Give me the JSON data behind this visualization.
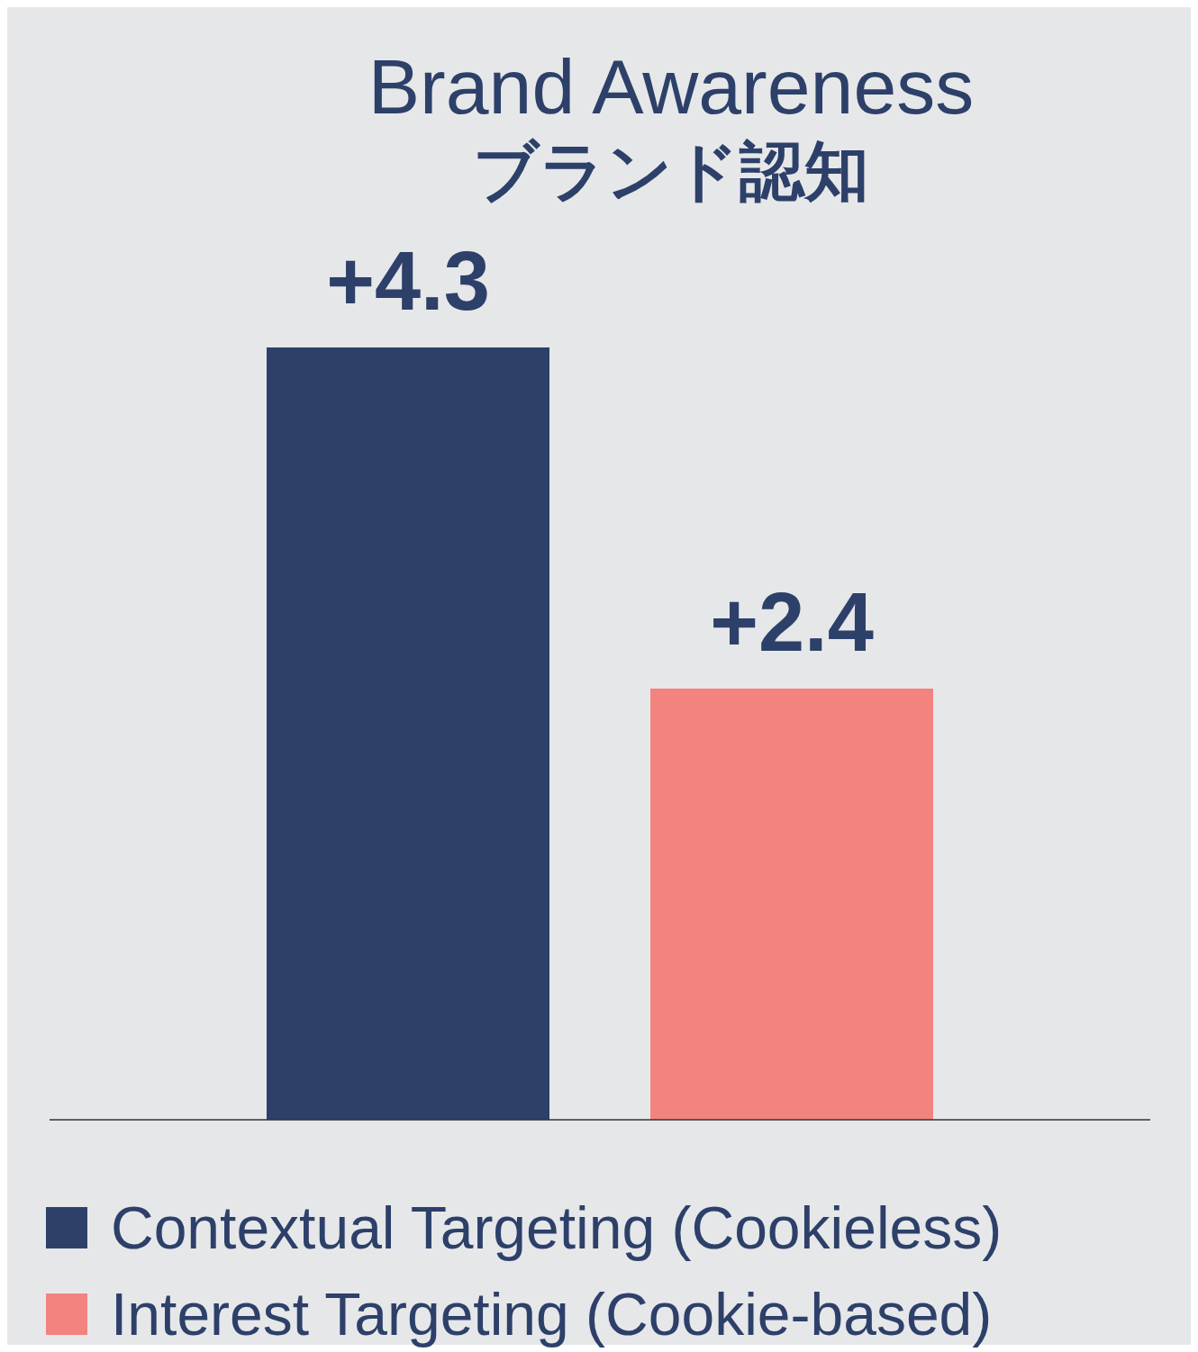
{
  "chart_data": {
    "type": "bar",
    "title": "Brand Awareness",
    "subtitle": "ブランド認知",
    "categories": [
      null
    ],
    "series": [
      {
        "name": "Contextual Targeting (Cookieless)",
        "color": "#2d4069",
        "values": [
          4.3
        ],
        "value_labels": [
          "+4.3"
        ]
      },
      {
        "name": "Interest Targeting (Cookie-based)",
        "color": "#f3837f",
        "values": [
          2.4
        ],
        "value_labels": [
          "+2.4"
        ]
      }
    ],
    "legend": "bottom left",
    "grid": false
  }
}
